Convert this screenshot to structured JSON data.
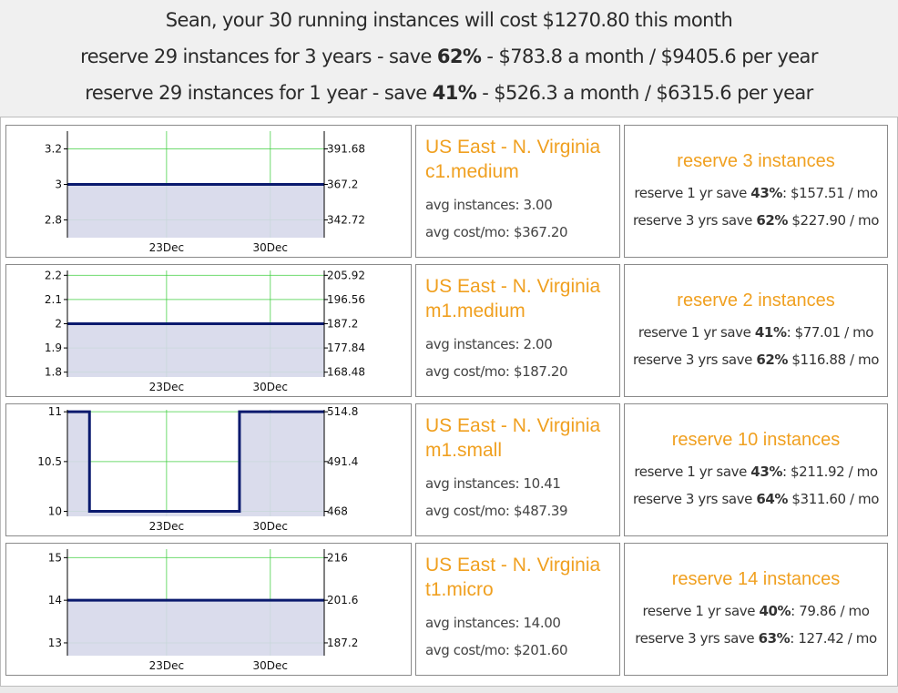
{
  "summary": {
    "name": "Sean",
    "line1": "Sean, your 30 running instances will cost $1270.80 this month",
    "line2_prefix": "reserve 29 instances for 3 years - save ",
    "line2_pct": "62%",
    "line2_suffix": " - $783.8 a month / $9405.6 per year",
    "line3_prefix": "reserve 29 instances for 1 year - save ",
    "line3_pct": "41%",
    "line3_suffix": " - $526.3 a month / $6315.6 per year"
  },
  "rows": [
    {
      "region": "US East - N. Virginia",
      "instance_type": "c1.medium",
      "avg_instances": "avg instances: 3.00",
      "avg_cost": "avg cost/mo: $367.20",
      "reserve_title": "reserve 3 instances",
      "reserve_1yr_prefix": "reserve 1 yr save ",
      "reserve_1yr_pct": "43%",
      "reserve_1yr_suffix": ": $157.51 / mo",
      "reserve_3yr_prefix": "reserve 3 yrs save ",
      "reserve_3yr_pct": "62%",
      "reserve_3yr_suffix": " $227.90 / mo"
    },
    {
      "region": "US East - N. Virginia",
      "instance_type": "m1.medium",
      "avg_instances": "avg instances: 2.00",
      "avg_cost": "avg cost/mo: $187.20",
      "reserve_title": "reserve 2 instances",
      "reserve_1yr_prefix": "reserve 1 yr save ",
      "reserve_1yr_pct": "41%",
      "reserve_1yr_suffix": ": $77.01 / mo",
      "reserve_3yr_prefix": "reserve 3 yrs save ",
      "reserve_3yr_pct": "62%",
      "reserve_3yr_suffix": " $116.88 / mo"
    },
    {
      "region": "US East - N. Virginia",
      "instance_type": "m1.small",
      "avg_instances": "avg instances: 10.41",
      "avg_cost": "avg cost/mo: $487.39",
      "reserve_title": "reserve 10 instances",
      "reserve_1yr_prefix": "reserve 1 yr save ",
      "reserve_1yr_pct": "43%",
      "reserve_1yr_suffix": ": $211.92 / mo",
      "reserve_3yr_prefix": "reserve 3 yrs save ",
      "reserve_3yr_pct": "64%",
      "reserve_3yr_suffix": " $311.60 / mo"
    },
    {
      "region": "US East - N. Virginia",
      "instance_type": "t1.micro",
      "avg_instances": "avg instances: 14.00",
      "avg_cost": "avg cost/mo: $201.60",
      "reserve_title": "reserve 14 instances",
      "reserve_1yr_prefix": "reserve 1 yr save ",
      "reserve_1yr_pct": "40%",
      "reserve_1yr_suffix": ": 79.86 / mo",
      "reserve_3yr_prefix": "reserve 3 yrs save ",
      "reserve_3yr_pct": "63%",
      "reserve_3yr_suffix": ": 127.42 / mo"
    }
  ],
  "colors": {
    "accent": "#f0a020",
    "line": "#0a1a6e",
    "fill": "#d6d8ea",
    "grid": "#33cc33"
  },
  "chart_data": [
    {
      "type": "area",
      "x_tick_labels": [
        "23Dec",
        "30Dec"
      ],
      "left_ticks": [
        2.8,
        3,
        3.2
      ],
      "right_ticks": [
        342.72,
        367.2,
        391.68
      ],
      "ylim": [
        2.7,
        3.3
      ],
      "series": [
        {
          "values": [
            [
              0,
              3
            ],
            [
              1,
              3
            ]
          ]
        }
      ]
    },
    {
      "type": "area",
      "x_tick_labels": [
        "23Dec",
        "30Dec"
      ],
      "left_ticks": [
        1.8,
        1.9,
        2,
        2.1,
        2.2
      ],
      "right_ticks": [
        168.48,
        177.84,
        187.2,
        196.56,
        205.92
      ],
      "ylim": [
        1.78,
        2.22
      ],
      "series": [
        {
          "values": [
            [
              0,
              2
            ],
            [
              1,
              2
            ]
          ]
        }
      ]
    },
    {
      "type": "area",
      "x_tick_labels": [
        "23Dec",
        "30Dec"
      ],
      "left_ticks": [
        10,
        10.5,
        11
      ],
      "right_ticks": [
        468,
        491.4,
        514.8
      ],
      "ylim": [
        9.95,
        11.02
      ],
      "series": [
        {
          "values": [
            [
              0,
              11
            ],
            [
              0.086,
              11
            ],
            [
              0.086,
              10
            ],
            [
              0.67,
              10
            ],
            [
              0.67,
              11
            ],
            [
              1,
              11
            ]
          ]
        }
      ]
    },
    {
      "type": "area",
      "x_tick_labels": [
        "23Dec",
        "30Dec"
      ],
      "left_ticks": [
        13,
        14,
        15
      ],
      "right_ticks": [
        187.2,
        201.6,
        216
      ],
      "ylim": [
        12.7,
        15.2
      ],
      "series": [
        {
          "values": [
            [
              0,
              14
            ],
            [
              1,
              14
            ]
          ]
        }
      ]
    }
  ]
}
